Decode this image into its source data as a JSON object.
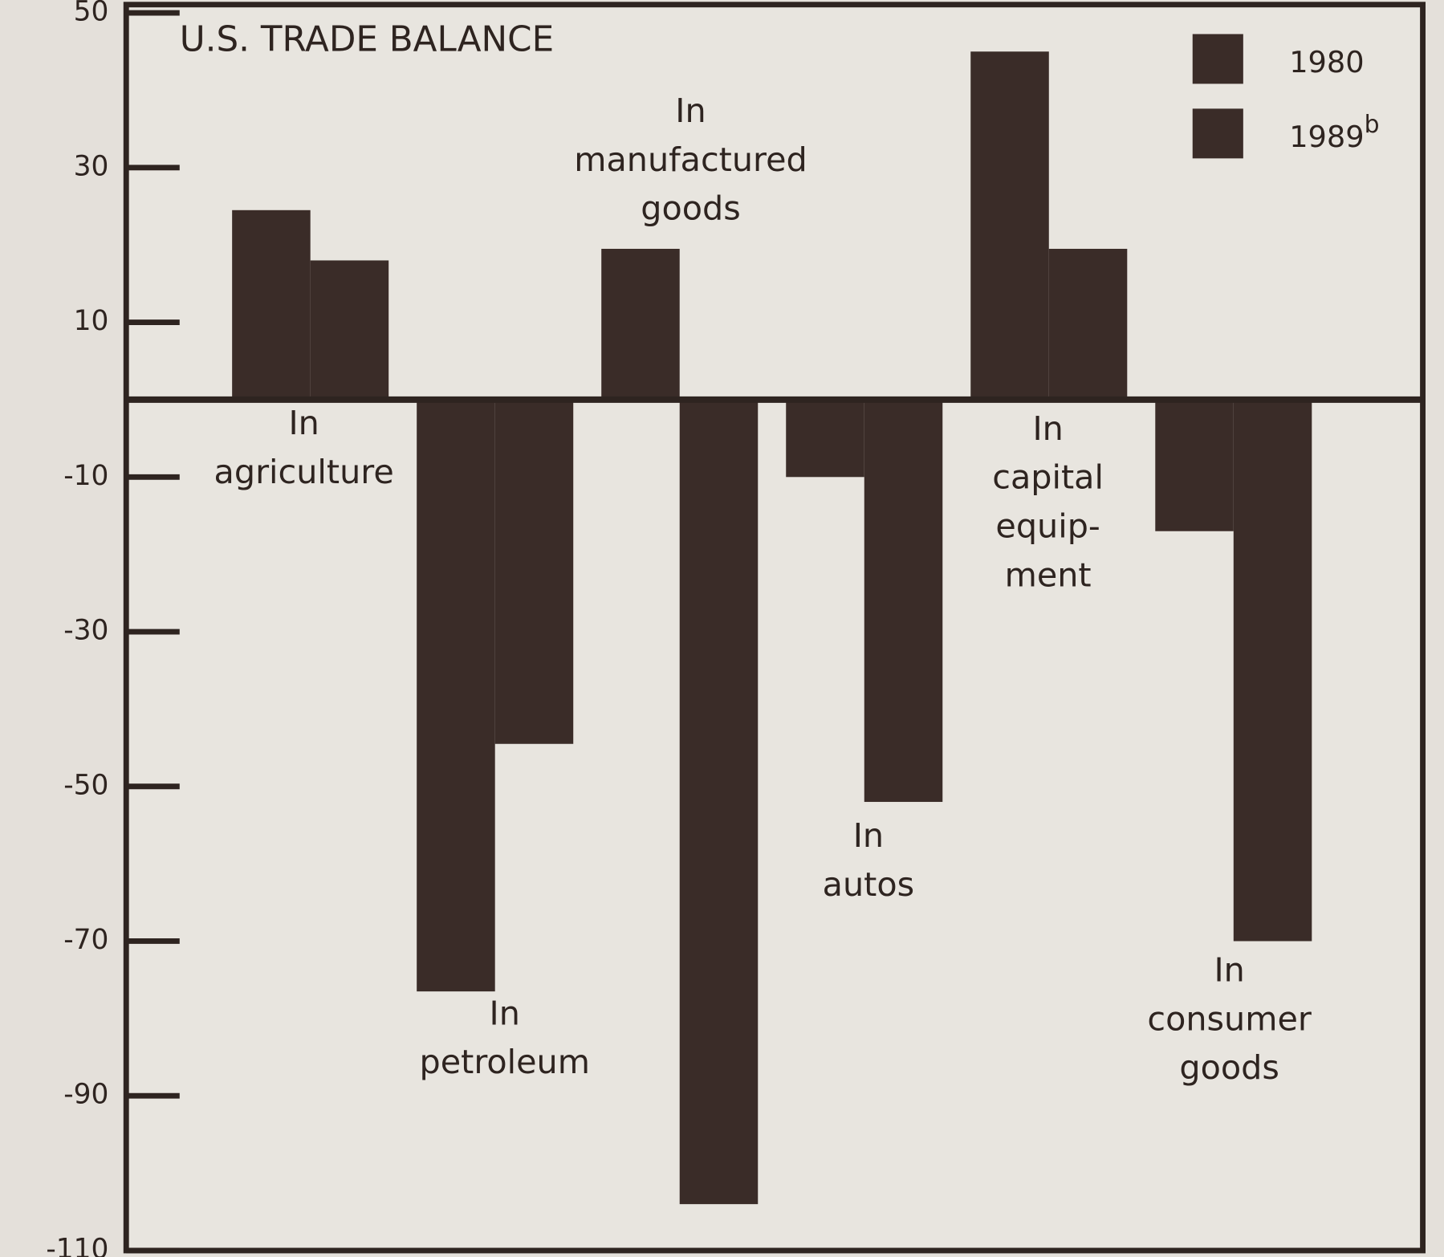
{
  "chart_data": {
    "type": "bar",
    "title": "U.S. TRADE BALANCE",
    "categories": [
      [
        "In",
        "agriculture"
      ],
      [
        "In",
        "petroleum"
      ],
      [
        "In",
        "manufactured",
        "goods"
      ],
      [
        "In",
        "autos"
      ],
      [
        "In",
        "capital",
        "equip-",
        "ment"
      ],
      [
        "In",
        "consumer",
        "goods"
      ]
    ],
    "series": [
      {
        "name": "1980",
        "color": "#3a2c28",
        "values": [
          24.5,
          -76.5,
          19.5,
          -10,
          45,
          -17
        ]
      },
      {
        "name": "1989",
        "footnote": "b",
        "color": "#3a2c28",
        "values": [
          18,
          -44.5,
          -104,
          -52,
          19.5,
          -70
        ]
      }
    ],
    "ylim": [
      -110,
      50
    ],
    "yticks": [
      50,
      30,
      10,
      -10,
      -30,
      -50,
      -70,
      -90,
      -110
    ],
    "legend": "upper right"
  }
}
